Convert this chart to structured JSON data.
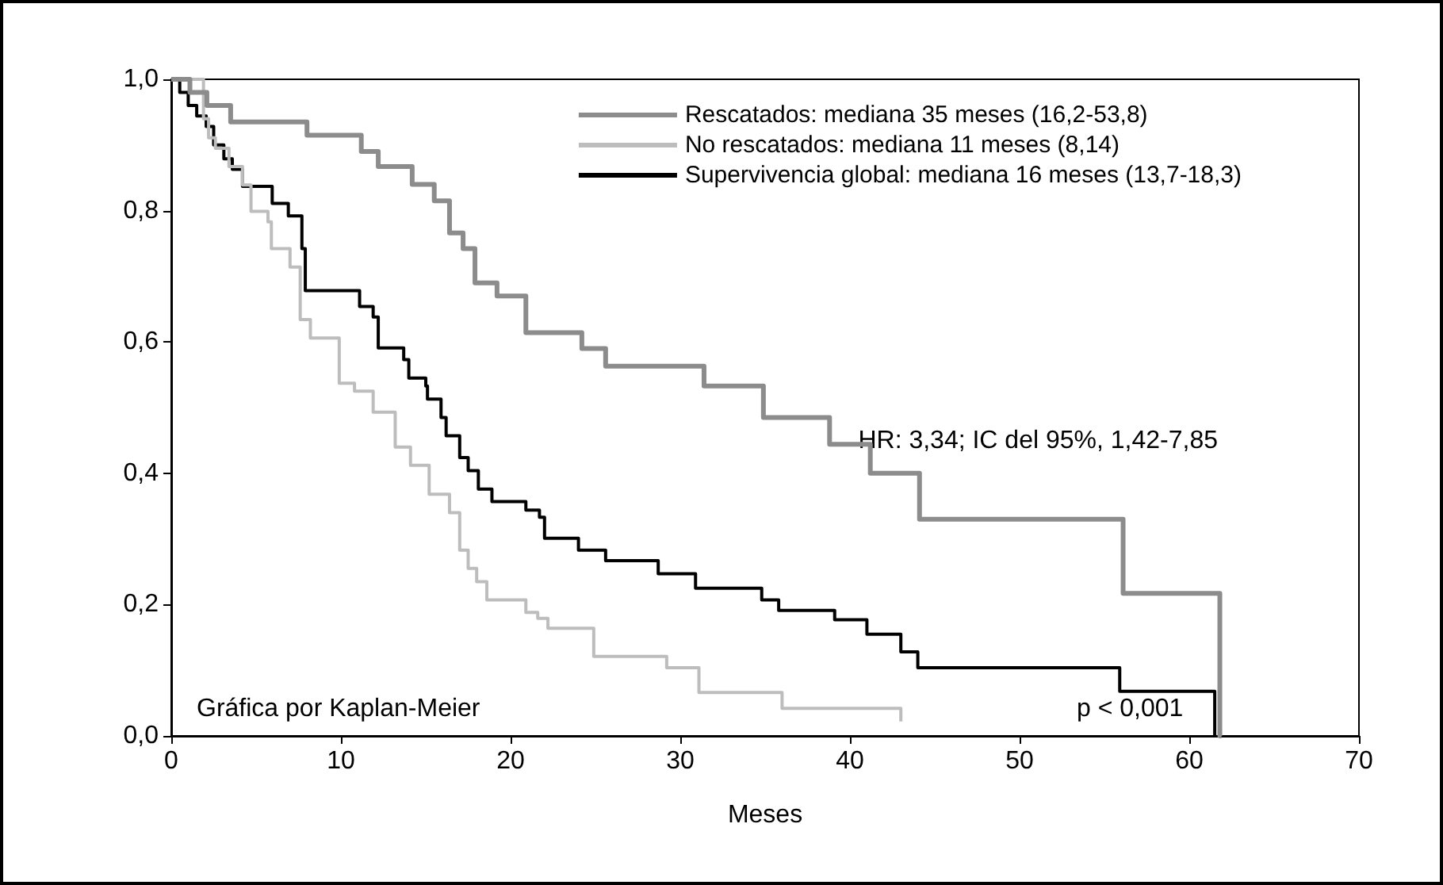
{
  "chart_data": {
    "type": "step",
    "xlabel": "Meses",
    "xlim": [
      0,
      70
    ],
    "xticks": [
      0,
      10,
      20,
      30,
      40,
      50,
      60,
      70
    ],
    "ylim": [
      0,
      1
    ],
    "yticks": [
      {
        "value": 0,
        "label": "0,0"
      },
      {
        "value": 0.2,
        "label": "0,2"
      },
      {
        "value": 0.4,
        "label": "0,4"
      },
      {
        "value": 0.6,
        "label": "0,6"
      },
      {
        "value": 0.8,
        "label": "0,8"
      },
      {
        "value": 1,
        "label": "1,0"
      }
    ],
    "legend": "top right",
    "grid": false,
    "marker": "none",
    "line_style": "solid",
    "annotations": [
      "HR: 3,34; IC del 95%, 1,42-7,85",
      "Gráfica por Kaplan-Meier",
      "p < 0,001"
    ],
    "series": [
      {
        "name": "Rescatados: mediana 35 meses (16,2-53,8)",
        "color": "#8c8c8c",
        "x": [
          0,
          1.1,
          2.1,
          3.5,
          8.0,
          11.2,
          12.2,
          14.2,
          15.5,
          16.4,
          17.2,
          17.9,
          19.2,
          20.9,
          24.2,
          25.6,
          31.4,
          34.9,
          38.8,
          41.2,
          44.1,
          56.1,
          61.8,
          61.9
        ],
        "values": [
          1,
          0.98,
          0.96,
          0.935,
          0.915,
          0.89,
          0.867,
          0.84,
          0.815,
          0.766,
          0.742,
          0.69,
          0.67,
          0.614,
          0.59,
          0.563,
          0.533,
          0.485,
          0.444,
          0.4,
          0.33,
          0.217,
          0,
          0
        ]
      },
      {
        "name": "No rescatados: mediana 11 meses (8,14)",
        "color": "#bdbdbd",
        "x": [
          0,
          1.9,
          2.2,
          2.6,
          3.4,
          4.2,
          4.7,
          5.7,
          5.9,
          7.0,
          7.6,
          8.2,
          9.9,
          10.8,
          11.9,
          13.2,
          14.1,
          15.2,
          16.4,
          17.0,
          17.5,
          18.0,
          18.6,
          20.9,
          21.6,
          22.2,
          24.9,
          29.2,
          31.1,
          36.0,
          43.0
        ],
        "values": [
          1,
          0.94,
          0.911,
          0.895,
          0.867,
          0.839,
          0.799,
          0.783,
          0.742,
          0.714,
          0.634,
          0.606,
          0.537,
          0.525,
          0.493,
          0.44,
          0.412,
          0.368,
          0.34,
          0.283,
          0.255,
          0.235,
          0.207,
          0.188,
          0.179,
          0.164,
          0.121,
          0.104,
          0.066,
          0.042,
          0.022
        ]
      },
      {
        "name": "Supervivencia global: mediana 16 meses (13,7-18,3)",
        "color": "#000000",
        "x": [
          0,
          0.5,
          1.0,
          1.5,
          2.06,
          2.5,
          3.1,
          3.6,
          4.2,
          5.95,
          6.9,
          7.7,
          7.9,
          11.1,
          11.9,
          12.2,
          13.7,
          14.0,
          15.0,
          15.1,
          15.9,
          16.2,
          17.0,
          17.5,
          18.1,
          18.9,
          20.9,
          21.7,
          22.0,
          24.0,
          25.6,
          28.7,
          30.9,
          34.8,
          35.8,
          39.1,
          41.0,
          43.0,
          44.0,
          55.9,
          61.5
        ],
        "values": [
          1,
          0.98,
          0.96,
          0.944,
          0.928,
          0.9,
          0.879,
          0.863,
          0.837,
          0.811,
          0.792,
          0.742,
          0.678,
          0.654,
          0.638,
          0.591,
          0.573,
          0.545,
          0.533,
          0.513,
          0.485,
          0.457,
          0.424,
          0.404,
          0.376,
          0.357,
          0.344,
          0.333,
          0.301,
          0.283,
          0.267,
          0.247,
          0.225,
          0.207,
          0.191,
          0.177,
          0.155,
          0.128,
          0.104,
          0.068,
          0
        ]
      }
    ]
  }
}
